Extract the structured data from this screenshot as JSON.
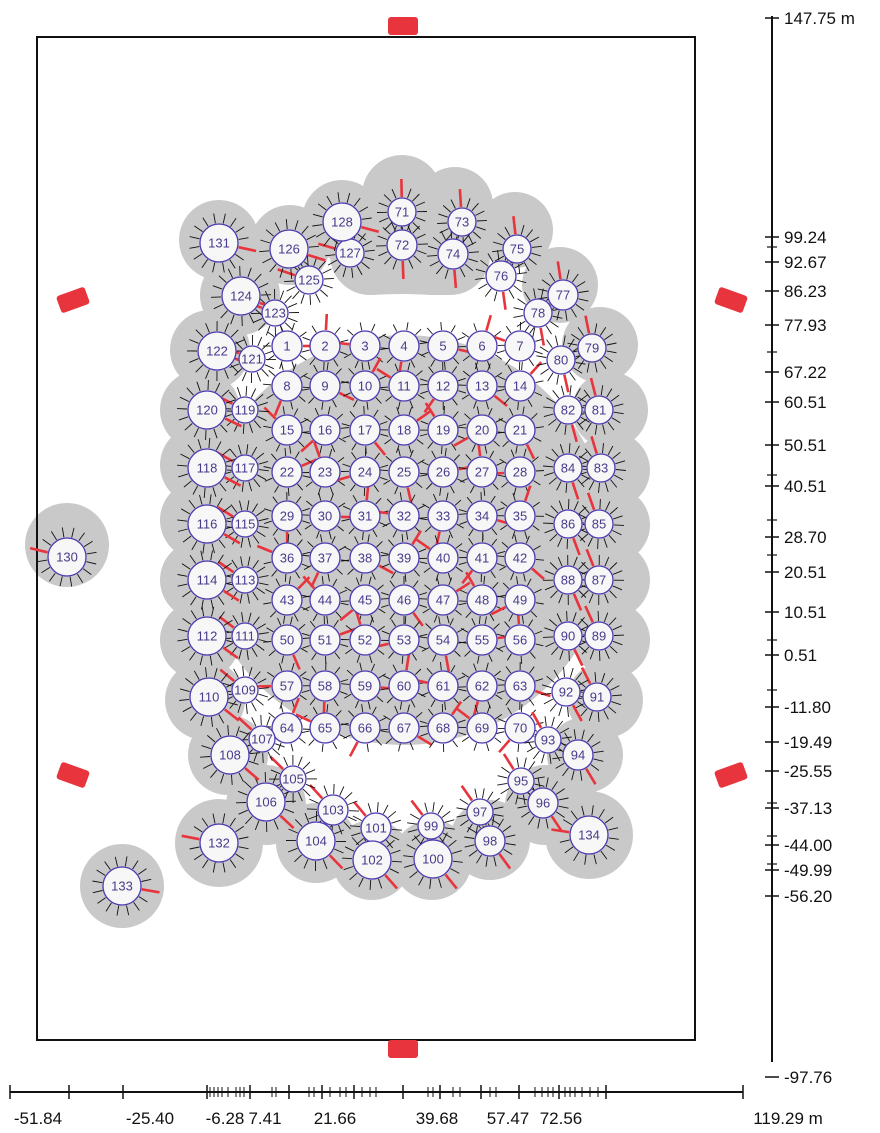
{
  "colors": {
    "halo": "#c9c9c9",
    "node_fill": "#f7f7f7",
    "node_stroke": "#4b3ab0",
    "label": "#4a3a8c",
    "spike": "#111111",
    "accent_spike": "#e8343c",
    "speaker": "#e8343c",
    "border": "#111111"
  },
  "x_axis": {
    "unit": "m",
    "labels": [
      "-51.84",
      "-25.40",
      "-6.28",
      "7.41",
      "21.66",
      "39.68",
      "57.47",
      "72.56",
      "119.29 m"
    ]
  },
  "y_axis": {
    "unit": "m",
    "labels": [
      "147.75 m",
      "99.24",
      "92.67",
      "86.23",
      "77.93",
      "67.22",
      "60.51",
      "50.51",
      "40.51",
      "28.70",
      "20.51",
      "10.51",
      "0.51",
      "-11.80",
      "-19.49",
      "-25.55",
      "-37.13",
      "-44.00",
      "-49.99",
      "-56.20",
      "-97.76"
    ]
  },
  "speakers": [
    {
      "name": "speaker-top"
    },
    {
      "name": "speaker-bottom"
    },
    {
      "name": "speaker-left-upper"
    },
    {
      "name": "speaker-left-lower"
    },
    {
      "name": "speaker-right-upper"
    },
    {
      "name": "speaker-right-lower"
    }
  ],
  "grid_rows": [
    [
      "1",
      "2",
      "3",
      "4",
      "5",
      "6",
      "7"
    ],
    [
      "8",
      "9",
      "10",
      "11",
      "12",
      "13",
      "14"
    ],
    [
      "15",
      "16",
      "17",
      "18",
      "19",
      "20",
      "21"
    ],
    [
      "22",
      "23",
      "24",
      "25",
      "26",
      "27",
      "28"
    ],
    [
      "29",
      "30",
      "31",
      "32",
      "33",
      "34",
      "35"
    ],
    [
      "36",
      "37",
      "38",
      "39",
      "40",
      "41",
      "42"
    ],
    [
      "43",
      "44",
      "45",
      "46",
      "47",
      "48",
      "49"
    ],
    [
      "50",
      "51",
      "52",
      "53",
      "54",
      "55",
      "56"
    ],
    [
      "57",
      "58",
      "59",
      "60",
      "61",
      "62",
      "63"
    ],
    [
      "64",
      "65",
      "66",
      "67",
      "68",
      "69",
      "70"
    ]
  ],
  "outer_nodes": [
    {
      "id": "71"
    },
    {
      "id": "72"
    },
    {
      "id": "73"
    },
    {
      "id": "74"
    },
    {
      "id": "75"
    },
    {
      "id": "76"
    },
    {
      "id": "77"
    },
    {
      "id": "78"
    },
    {
      "id": "79"
    },
    {
      "id": "80"
    },
    {
      "id": "81"
    },
    {
      "id": "82"
    },
    {
      "id": "83"
    },
    {
      "id": "84"
    },
    {
      "id": "85"
    },
    {
      "id": "86"
    },
    {
      "id": "87"
    },
    {
      "id": "88"
    },
    {
      "id": "89"
    },
    {
      "id": "90"
    },
    {
      "id": "91"
    },
    {
      "id": "92"
    },
    {
      "id": "93"
    },
    {
      "id": "94"
    },
    {
      "id": "95"
    },
    {
      "id": "96"
    },
    {
      "id": "97"
    },
    {
      "id": "98"
    },
    {
      "id": "99"
    },
    {
      "id": "100"
    },
    {
      "id": "101"
    },
    {
      "id": "102"
    },
    {
      "id": "103"
    },
    {
      "id": "104"
    },
    {
      "id": "105"
    },
    {
      "id": "106"
    },
    {
      "id": "107"
    },
    {
      "id": "108"
    },
    {
      "id": "109"
    },
    {
      "id": "110"
    },
    {
      "id": "111"
    },
    {
      "id": "112"
    },
    {
      "id": "113"
    },
    {
      "id": "114"
    },
    {
      "id": "115"
    },
    {
      "id": "116"
    },
    {
      "id": "117"
    },
    {
      "id": "118"
    },
    {
      "id": "119"
    },
    {
      "id": "120"
    },
    {
      "id": "121"
    },
    {
      "id": "122"
    },
    {
      "id": "123"
    },
    {
      "id": "124"
    },
    {
      "id": "125"
    },
    {
      "id": "126"
    },
    {
      "id": "127"
    },
    {
      "id": "128"
    },
    {
      "id": "130"
    },
    {
      "id": "131"
    },
    {
      "id": "132"
    },
    {
      "id": "133"
    },
    {
      "id": "134"
    }
  ]
}
